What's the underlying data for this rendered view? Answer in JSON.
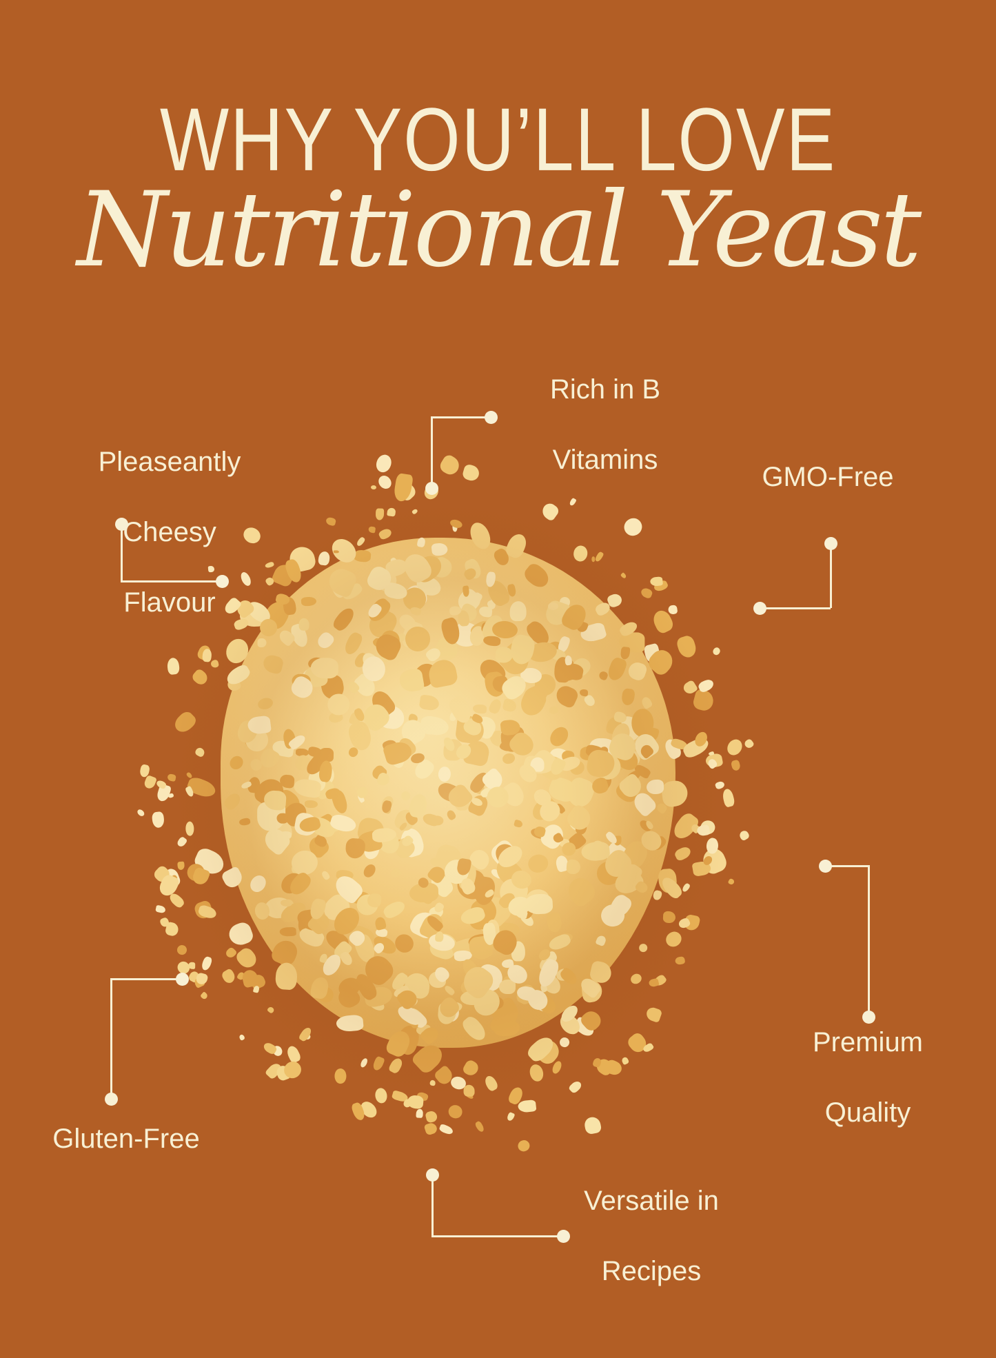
{
  "title": {
    "kicker": "WHY YOU’LL LOVE",
    "product": "Nutritional Yeast"
  },
  "callouts": [
    {
      "id": "rich-in-b-vitamins",
      "lines": [
        "Rich in B",
        "Vitamins"
      ]
    },
    {
      "id": "pleaseantly-cheesy-flavour",
      "lines": [
        "Pleaseantly",
        "Cheesy",
        "Flavour"
      ]
    },
    {
      "id": "gmo-free",
      "lines": [
        "GMO-Free"
      ]
    },
    {
      "id": "gluten-free",
      "lines": [
        "Gluten-Free"
      ]
    },
    {
      "id": "premium-quality",
      "lines": [
        "Premium",
        "Quality"
      ]
    },
    {
      "id": "versatile-in-recipes",
      "lines": [
        "Versatile in",
        "Recipes"
      ]
    }
  ],
  "image": {
    "description": "Pile of golden nutritional yeast flakes"
  },
  "colors": {
    "background": "#B25E25",
    "text": "#F8F0D4",
    "connector": "#F8F0D4",
    "yeast_palette": [
      "#FAE8B9",
      "#F6D994",
      "#F2CE80",
      "#EDC06A",
      "#E7B054",
      "#DFA148",
      "#F8E3A8",
      "#F4D68C"
    ]
  }
}
